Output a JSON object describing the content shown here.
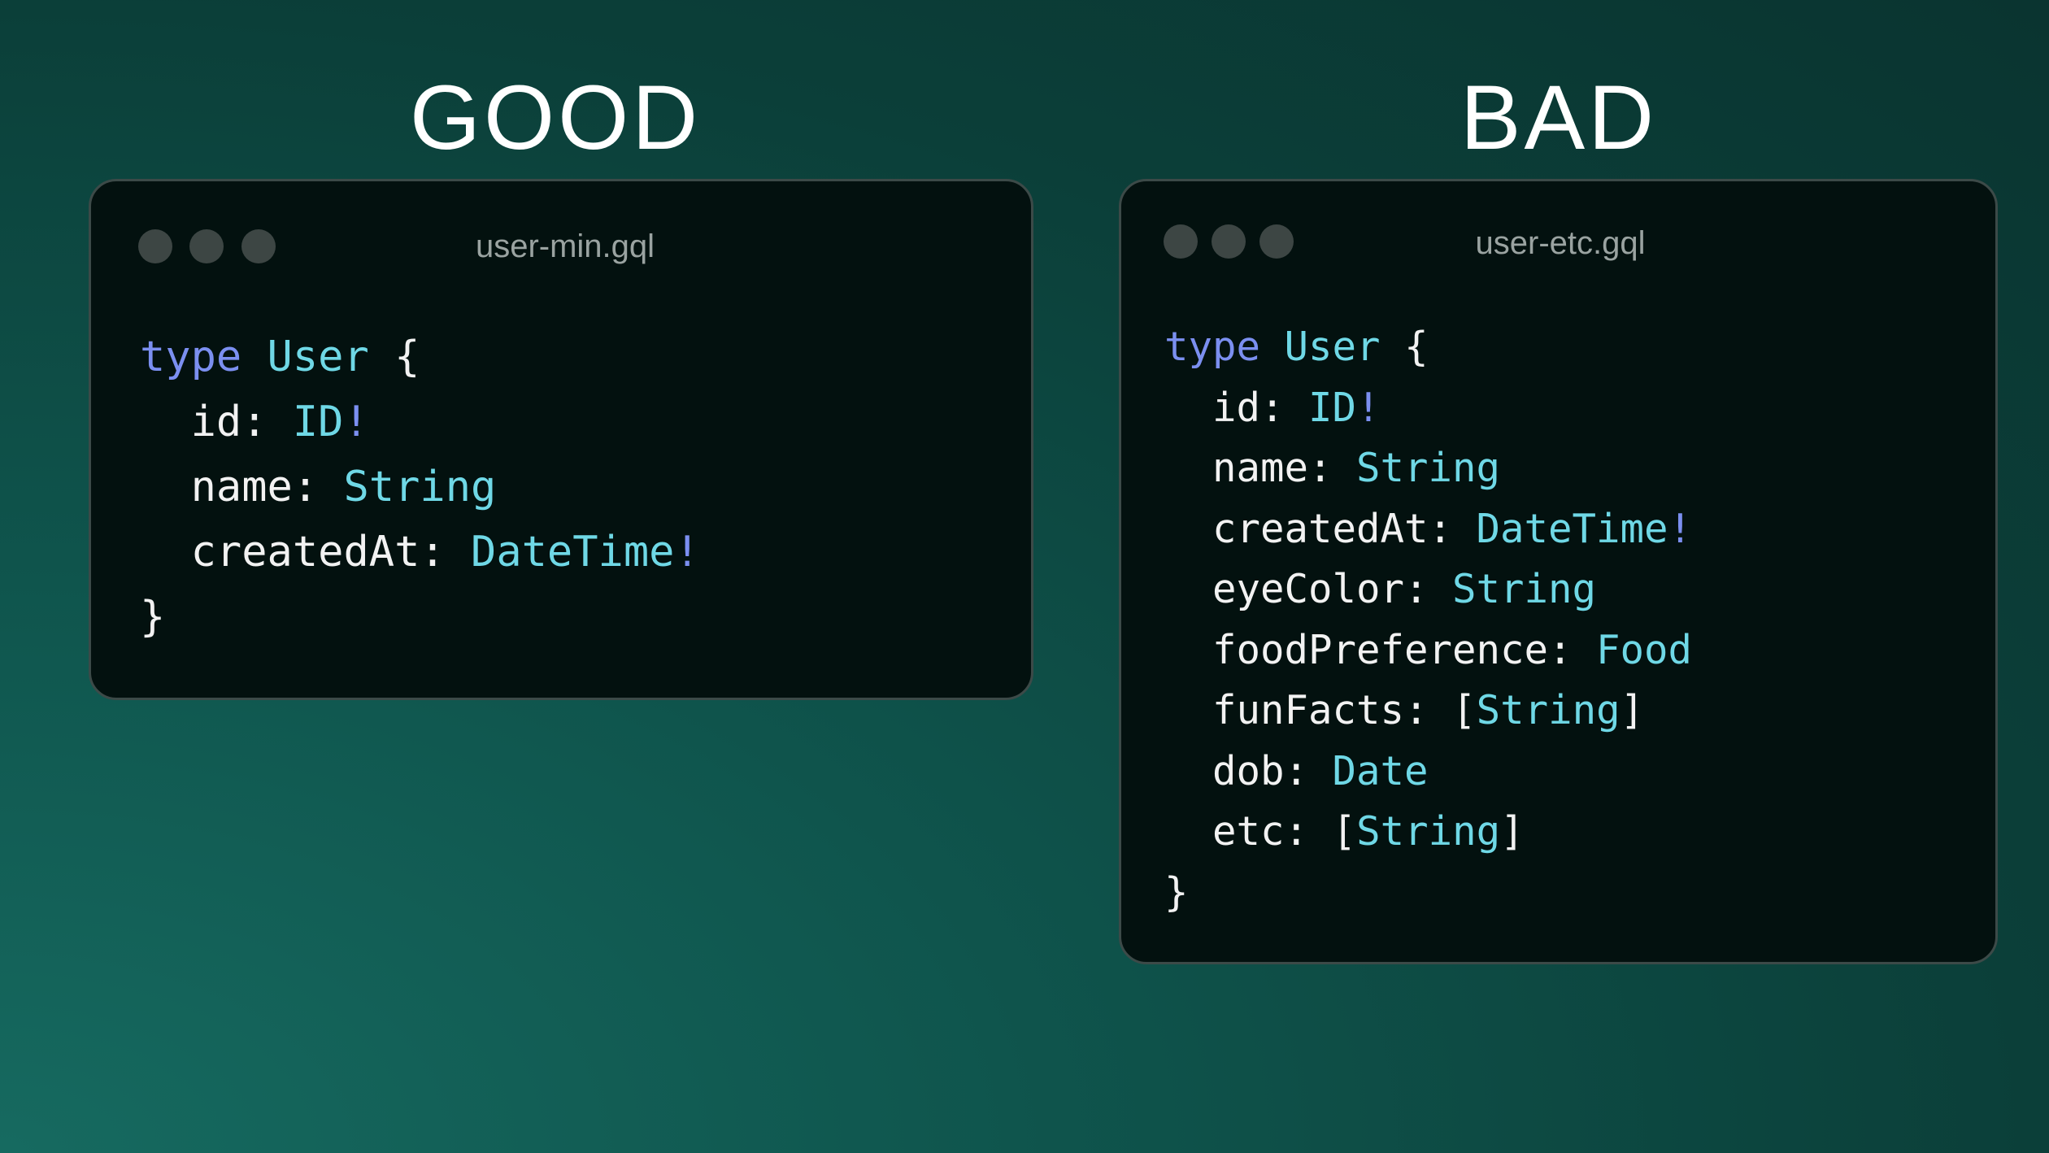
{
  "good": {
    "heading": "GOOD",
    "filename": "user-min.gql",
    "keyword": "type",
    "type_name": "User",
    "open_brace": "{",
    "close_brace": "}",
    "fields": [
      {
        "name": "id",
        "type": "ID",
        "suffix": "!"
      },
      {
        "name": "name",
        "type": "String",
        "suffix": ""
      },
      {
        "name": "createdAt",
        "type": "DateTime",
        "suffix": "!"
      }
    ]
  },
  "bad": {
    "heading": "BAD",
    "filename": "user-etc.gql",
    "keyword": "type",
    "type_name": "User",
    "open_brace": "{",
    "close_brace": "}",
    "fields": [
      {
        "name": "id",
        "type": "ID",
        "suffix": "!"
      },
      {
        "name": "name",
        "type": "String",
        "suffix": ""
      },
      {
        "name": "createdAt",
        "type": "DateTime",
        "suffix": "!"
      },
      {
        "name": "eyeColor",
        "type": "String",
        "suffix": ""
      },
      {
        "name": "foodPreference",
        "type": "Food",
        "suffix": ""
      },
      {
        "name": "funFacts",
        "type": "String",
        "suffix": "",
        "list": true
      },
      {
        "name": "dob",
        "type": "Date",
        "suffix": ""
      },
      {
        "name": "etc",
        "type": "String",
        "suffix": "",
        "list": true
      }
    ]
  },
  "colors": {
    "keyword": "#7b8ff0",
    "type": "#6fd8e6",
    "text": "#f2f2f2",
    "panel": "#03110f"
  }
}
